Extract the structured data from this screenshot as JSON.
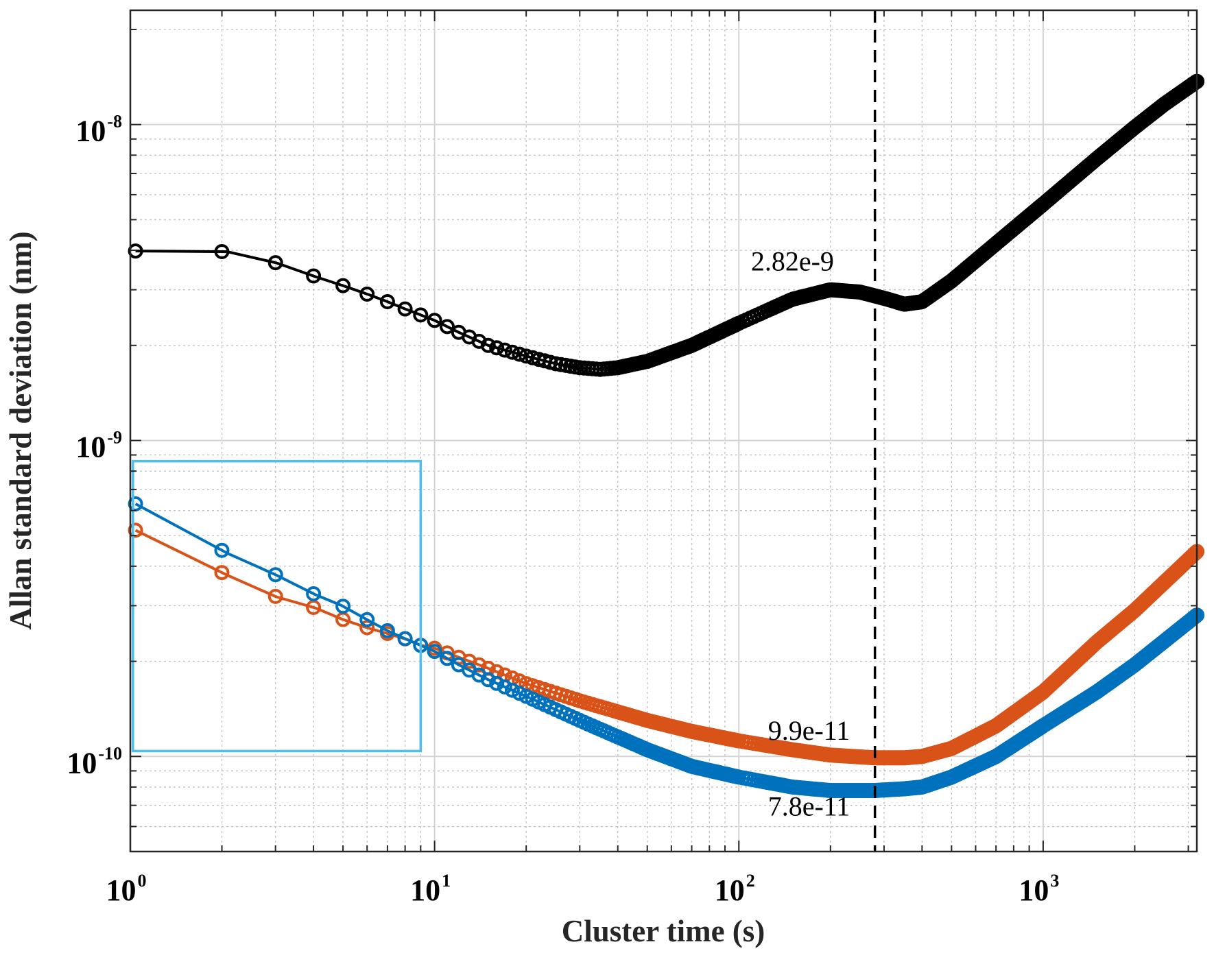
{
  "chart_data": {
    "type": "line",
    "title": "",
    "xlabel": "Cluster time (s)",
    "ylabel": "Allan standard deviation (nm)",
    "xscale": "log",
    "yscale": "log",
    "xlim": [
      1,
      3200
    ],
    "ylim": [
      5e-11,
      2.3e-08
    ],
    "grid": true,
    "x_ticks": [
      {
        "value": 1,
        "base": "10",
        "exp": "0"
      },
      {
        "value": 10,
        "base": "10",
        "exp": "1"
      },
      {
        "value": 100,
        "base": "10",
        "exp": "2"
      },
      {
        "value": 1000,
        "base": "10",
        "exp": "3"
      }
    ],
    "y_ticks": [
      {
        "value": 1e-10,
        "base": "10",
        "exp": "-10"
      },
      {
        "value": 1e-09,
        "base": "10",
        "exp": "-9"
      },
      {
        "value": 1e-08,
        "base": "10",
        "exp": "-8"
      }
    ],
    "series": [
      {
        "name": "black",
        "color": "#000000",
        "x": [
          1.04,
          2.08,
          3.02,
          4.06,
          4.96,
          6.04,
          7.0,
          8.07,
          8.97,
          10,
          12,
          15,
          20,
          25,
          30,
          35,
          40,
          50,
          70,
          100,
          150,
          200,
          250,
          300,
          350,
          400,
          500,
          700,
          1000,
          1500,
          2000,
          2500,
          3200
        ],
        "y": [
          3.98e-09,
          3.96e-09,
          3.65e-09,
          3.3e-09,
          3.1e-09,
          2.9e-09,
          2.75e-09,
          2.6e-09,
          2.5e-09,
          2.4e-09,
          2.2e-09,
          2e-09,
          1.85e-09,
          1.75e-09,
          1.7e-09,
          1.68e-09,
          1.7e-09,
          1.78e-09,
          2e-09,
          2.35e-09,
          2.8e-09,
          3e-09,
          2.95e-09,
          2.82e-09,
          2.7e-09,
          2.75e-09,
          3.2e-09,
          4.2e-09,
          5.6e-09,
          7.8e-09,
          9.8e-09,
          1.16e-08,
          1.37e-08
        ]
      },
      {
        "name": "orange",
        "color": "#D95319",
        "x": [
          1.04,
          2.08,
          3.02,
          4.06,
          4.96,
          6.04,
          7.0,
          8.07,
          8.97,
          10,
          15,
          20,
          30,
          50,
          70,
          100,
          150,
          200,
          280,
          350,
          400,
          500,
          700,
          1000,
          1500,
          2000,
          3200
        ],
        "y": [
          5.2e-10,
          3.75e-10,
          3.2e-10,
          2.95e-10,
          2.72e-10,
          2.55e-10,
          2.45e-10,
          2.35e-10,
          2.25e-10,
          2.2e-10,
          1.9e-10,
          1.7e-10,
          1.5e-10,
          1.3e-10,
          1.2e-10,
          1.12e-10,
          1.05e-10,
          1.01e-10,
          9.9e-11,
          9.9e-11,
          1e-10,
          1.06e-10,
          1.25e-10,
          1.6e-10,
          2.3e-10,
          2.9e-10,
          4.45e-10
        ]
      },
      {
        "name": "blue",
        "color": "#0072BD",
        "x": [
          1.04,
          2.08,
          3.02,
          4.06,
          4.96,
          6.04,
          7.0,
          8.07,
          8.97,
          10,
          12,
          15,
          20,
          30,
          50,
          70,
          100,
          150,
          200,
          280,
          350,
          400,
          500,
          700,
          1000,
          1500,
          2000,
          3200
        ],
        "y": [
          6.3e-10,
          4.4e-10,
          3.75e-10,
          3.25e-10,
          3e-10,
          2.7e-10,
          2.5e-10,
          2.35e-10,
          2.25e-10,
          2.15e-10,
          1.95e-10,
          1.75e-10,
          1.55e-10,
          1.3e-10,
          1.05e-10,
          9.3e-11,
          8.6e-11,
          8e-11,
          7.8e-11,
          7.8e-11,
          7.9e-11,
          8e-11,
          8.6e-11,
          1e-10,
          1.25e-10,
          1.6e-10,
          1.95e-10,
          2.8e-10
        ]
      }
    ],
    "vline_x": 280,
    "annotations": [
      {
        "text": "2.82e-9",
        "x": 150,
        "y": 3.45e-09
      },
      {
        "text": "9.9e-11",
        "x": 170,
        "y": 1.13e-10
      },
      {
        "text": "7.8e-11",
        "x": 170,
        "y": 6.5e-11
      }
    ],
    "highlight_box": {
      "x0": 1.02,
      "x1": 9.0,
      "y0": 1.04e-10,
      "y1": 8.6e-10,
      "color": "#4DBEEE"
    }
  }
}
